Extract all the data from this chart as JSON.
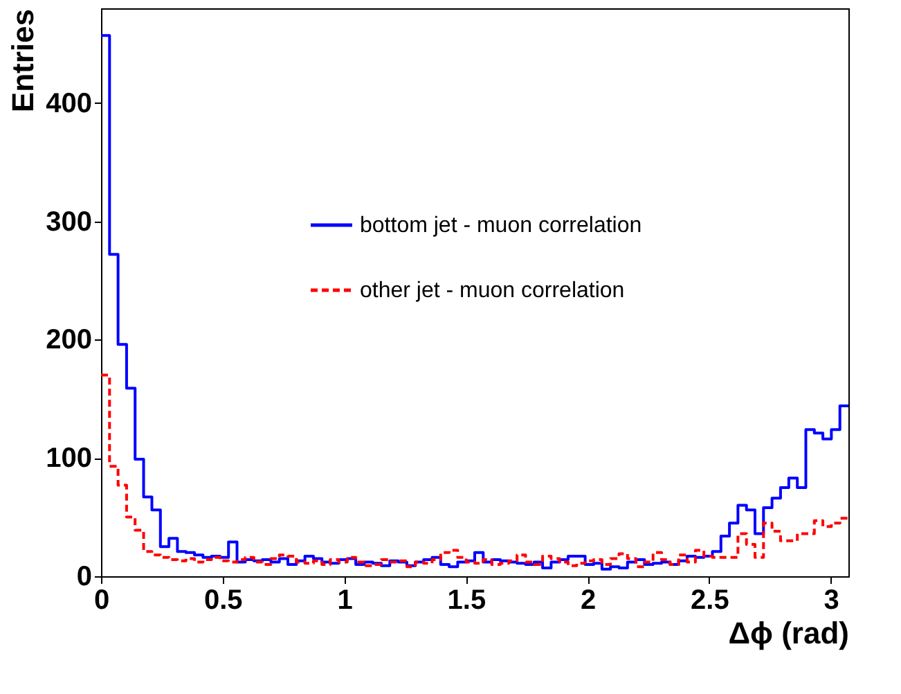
{
  "chart_data": {
    "type": "histogram",
    "xlabel": "Δϕ (rad)",
    "ylabel": "Entries",
    "bins": [
      0,
      0.035,
      0.07,
      0.105,
      0.14,
      0.175,
      0.209,
      0.244,
      0.279,
      0.314,
      0.349,
      0.384,
      0.419,
      0.454,
      0.489,
      0.524,
      0.559,
      0.593,
      0.628,
      0.663,
      0.698,
      0.733,
      0.768,
      0.803,
      0.838,
      0.873,
      0.908,
      0.942,
      0.977,
      1.012,
      1.047,
      1.082,
      1.117,
      1.152,
      1.187,
      1.222,
      1.257,
      1.292,
      1.326,
      1.361,
      1.396,
      1.431,
      1.466,
      1.501,
      1.536,
      1.571,
      1.606,
      1.641,
      1.676,
      1.71,
      1.745,
      1.78,
      1.815,
      1.85,
      1.885,
      1.92,
      1.955,
      1.99,
      2.025,
      2.059,
      2.094,
      2.129,
      2.164,
      2.199,
      2.234,
      2.269,
      2.304,
      2.339,
      2.374,
      2.409,
      2.443,
      2.478,
      2.513,
      2.548,
      2.583,
      2.618,
      2.653,
      2.688,
      2.723,
      2.758,
      2.793,
      2.827,
      2.862,
      2.897,
      2.932,
      2.967,
      3.002,
      3.037,
      3.072
    ],
    "series": [
      {
        "name": "bottom jet - muon correlation",
        "color": "#0000ff",
        "line_style": "solid",
        "values": [
          457,
          272,
          196,
          159,
          99,
          67,
          56,
          25,
          32,
          21,
          20,
          18,
          16,
          17,
          16,
          29,
          12,
          14,
          13,
          14,
          12,
          15,
          10,
          13,
          17,
          15,
          12,
          11,
          14,
          15,
          10,
          12,
          11,
          9,
          13,
          12,
          9,
          12,
          14,
          16,
          10,
          8,
          12,
          13,
          20,
          12,
          14,
          13,
          12,
          11,
          10,
          12,
          7,
          12,
          14,
          17,
          17,
          10,
          11,
          6,
          8,
          7,
          12,
          14,
          10,
          11,
          12,
          10,
          13,
          17,
          16,
          17,
          21,
          34,
          45,
          60,
          56,
          36,
          58,
          66,
          75,
          83,
          75,
          124,
          121,
          116,
          124,
          144
        ]
      },
      {
        "name": "other jet - muon correlation",
        "color": "#ff0000",
        "line_style": "dashed",
        "values": [
          170,
          93,
          77,
          50,
          39,
          21,
          18,
          16,
          14,
          13,
          15,
          12,
          14,
          16,
          13,
          12,
          14,
          16,
          12,
          10,
          15,
          18,
          17,
          12,
          11,
          13,
          10,
          14,
          12,
          16,
          12,
          9,
          10,
          14,
          12,
          13,
          8,
          12,
          11,
          14,
          20,
          22,
          16,
          12,
          11,
          14,
          10,
          11,
          13,
          18,
          12,
          10,
          17,
          15,
          12,
          9,
          11,
          13,
          14,
          10,
          15,
          19,
          15,
          8,
          12,
          20,
          14,
          10,
          18,
          12,
          22,
          17,
          16,
          16,
          16,
          36,
          27,
          16,
          45,
          38,
          30,
          30,
          36,
          36,
          47,
          42,
          45,
          49
        ]
      }
    ],
    "xlim": [
      0,
      3.072
    ],
    "xticks": [
      0,
      0.5,
      1,
      1.5,
      2,
      2.5,
      3
    ],
    "ylim": [
      0,
      480
    ],
    "yticks": [
      0,
      100,
      200,
      300,
      400
    ],
    "grid": false,
    "legend": "top right"
  }
}
